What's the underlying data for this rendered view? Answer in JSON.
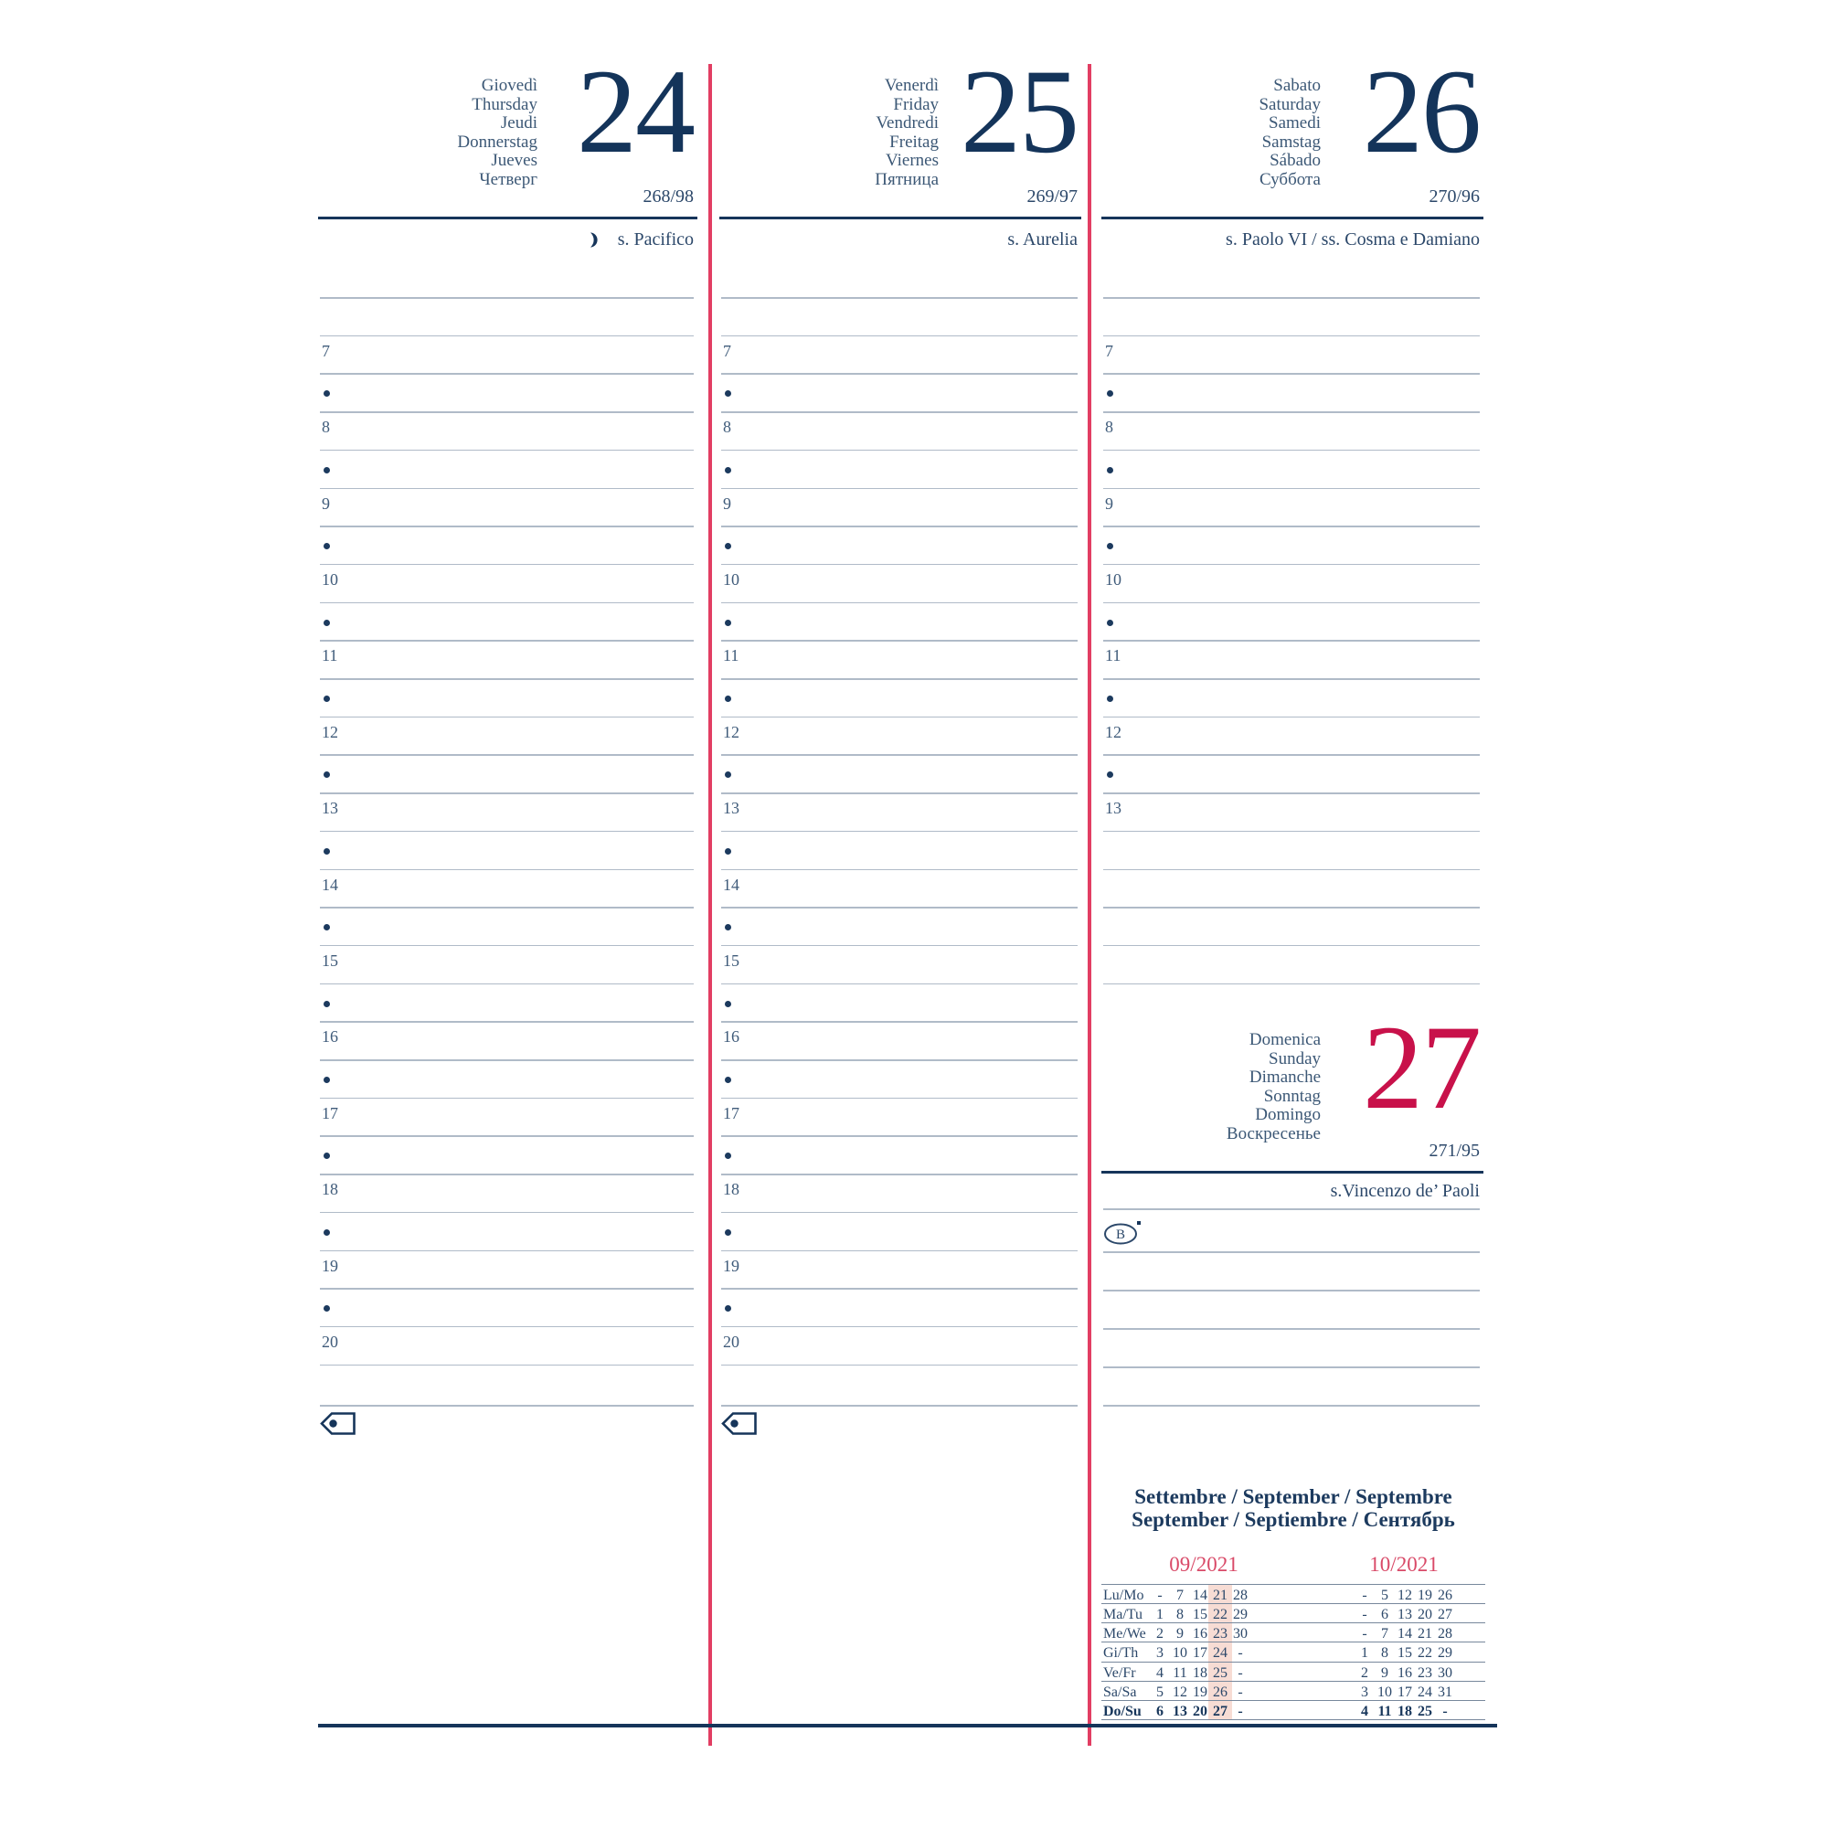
{
  "page": {
    "accent_navy": "#16355a",
    "accent_red_number": "#c8114a",
    "accent_red_line": "#e23e63",
    "accent_red_label": "#d94a68",
    "rule_color": "#b0bbc8",
    "highlight_pink": "#f7dcd4"
  },
  "days": [
    {
      "names": [
        "Giovedì",
        "Thursday",
        "Jeudi",
        "Donnerstag",
        "Jueves",
        "Четверг"
      ],
      "number": "24",
      "day_of_year": "268/98",
      "saint": "s. Pacifico",
      "has_moon_icon": true,
      "hours": [
        "7",
        "8",
        "9",
        "10",
        "11",
        "12",
        "13",
        "14",
        "15",
        "16",
        "17",
        "18",
        "19",
        "20"
      ]
    },
    {
      "names": [
        "Venerdì",
        "Friday",
        "Vendredi",
        "Freitag",
        "Viernes",
        "Пятница"
      ],
      "number": "25",
      "day_of_year": "269/97",
      "saint": "s. Aurelia",
      "has_moon_icon": false,
      "hours": [
        "7",
        "8",
        "9",
        "10",
        "11",
        "12",
        "13",
        "14",
        "15",
        "16",
        "17",
        "18",
        "19",
        "20"
      ]
    },
    {
      "names": [
        "Sabato",
        "Saturday",
        "Samedi",
        "Samstag",
        "Sábado",
        "Суббота"
      ],
      "number": "26",
      "day_of_year": "270/96",
      "saint": "s. Paolo VI / ss. Cosma e Damiano",
      "has_moon_icon": false,
      "hours": [
        "7",
        "8",
        "9",
        "10",
        "11",
        "12",
        "13"
      ]
    }
  ],
  "sunday": {
    "names": [
      "Domenica",
      "Sunday",
      "Dimanche",
      "Sonntag",
      "Domingo",
      "Воскресенье"
    ],
    "number": "27",
    "day_of_year": "271/95",
    "saint": "s.Vincenzo de’ Paoli",
    "symbol_letter": "B"
  },
  "mini_calendar": {
    "title_line1": "Settembre / September / Septembre",
    "title_line2": "September / Septiembre / Сентябрь",
    "row_labels": [
      "Lu/Mo",
      "Ma/Tu",
      "Me/We",
      "Gi/Th",
      "Ve/Fr",
      "Sa/Sa",
      "Do/Su"
    ],
    "months": [
      {
        "label": "09/2021",
        "rows": [
          [
            "-",
            "7",
            "14",
            "21",
            "28"
          ],
          [
            "1",
            "8",
            "15",
            "22",
            "29"
          ],
          [
            "2",
            "9",
            "16",
            "23",
            "30"
          ],
          [
            "3",
            "10",
            "17",
            "24",
            "-"
          ],
          [
            "4",
            "11",
            "18",
            "25",
            "-"
          ],
          [
            "5",
            "12",
            "19",
            "26",
            "-"
          ],
          [
            "6",
            "13",
            "20",
            "27",
            "-"
          ]
        ],
        "highlighted_column": 3
      },
      {
        "label": "10/2021",
        "rows": [
          [
            "-",
            "5",
            "12",
            "19",
            "26"
          ],
          [
            "-",
            "6",
            "13",
            "20",
            "27"
          ],
          [
            "-",
            "7",
            "14",
            "21",
            "28"
          ],
          [
            "1",
            "8",
            "15",
            "22",
            "29"
          ],
          [
            "2",
            "9",
            "16",
            "23",
            "30"
          ],
          [
            "3",
            "10",
            "17",
            "24",
            "31"
          ],
          [
            "4",
            "11",
            "18",
            "25",
            "-"
          ]
        ],
        "highlighted_column": -1
      }
    ],
    "bold_row_index": 6
  }
}
